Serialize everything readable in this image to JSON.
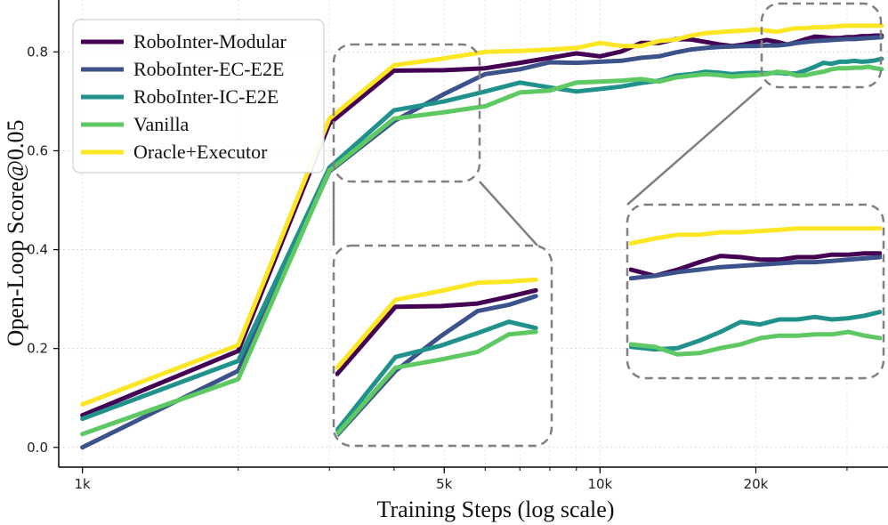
{
  "chart_data": {
    "type": "line",
    "title": "",
    "xlabel": "Training Steps (log scale)",
    "ylabel": "Open-Loop Score@0.05",
    "x_scale": "log",
    "xlim": [
      900,
      36000
    ],
    "ylim": [
      -0.04,
      0.905
    ],
    "x_ticks": [
      {
        "value": 1000,
        "label": "1k"
      },
      {
        "value": 5000,
        "label": "5k"
      },
      {
        "value": 10000,
        "label": "10k"
      },
      {
        "value": 20000,
        "label": "20k"
      }
    ],
    "y_ticks": [
      {
        "value": 0.0,
        "label": "0.0"
      },
      {
        "value": 0.2,
        "label": "0.2"
      },
      {
        "value": 0.4,
        "label": "0.4"
      },
      {
        "value": 0.6,
        "label": "0.6"
      },
      {
        "value": 0.8,
        "label": "0.8"
      }
    ],
    "grid": true,
    "legend_position": "top-left",
    "x": [
      1000,
      2000,
      3000,
      4000,
      5000,
      6000,
      7000,
      8000,
      9000,
      10000,
      11000,
      12000,
      13000,
      14000,
      15000,
      16000,
      17000,
      18000,
      19000,
      20000,
      21000,
      22000,
      23000,
      24000,
      25000,
      26000,
      27000,
      28000,
      29000,
      30000,
      31000,
      32000,
      33000,
      34000,
      35000
    ],
    "series": [
      {
        "name": "RoboInter-Modular",
        "color": "#440154",
        "values": [
          0.065,
          0.195,
          0.655,
          0.762,
          0.763,
          0.767,
          0.778,
          0.788,
          0.797,
          0.791,
          0.801,
          0.818,
          0.818,
          0.826,
          0.825,
          0.82,
          0.815,
          0.812,
          0.815,
          0.82,
          0.824,
          0.82,
          0.815,
          0.82,
          0.826,
          0.831,
          0.83,
          0.828,
          0.828,
          0.83,
          0.83,
          0.832,
          0.832,
          0.833,
          0.833
        ]
      },
      {
        "name": "RoboInter-EC-E2E",
        "color": "#3b528b",
        "values": [
          0.0,
          0.155,
          0.558,
          0.66,
          0.715,
          0.755,
          0.765,
          0.779,
          0.778,
          0.78,
          0.782,
          0.788,
          0.791,
          0.799,
          0.805,
          0.808,
          0.81,
          0.811,
          0.812,
          0.812,
          0.813,
          0.813,
          0.815,
          0.818,
          0.82,
          0.822,
          0.823,
          0.824,
          0.825,
          0.826,
          0.826,
          0.827,
          0.828,
          0.829,
          0.83
        ]
      },
      {
        "name": "RoboInter-IC-E2E",
        "color": "#21918c",
        "values": [
          0.058,
          0.175,
          0.566,
          0.682,
          0.7,
          0.72,
          0.738,
          0.728,
          0.72,
          0.725,
          0.73,
          0.737,
          0.742,
          0.752,
          0.755,
          0.76,
          0.758,
          0.755,
          0.757,
          0.758,
          0.757,
          0.758,
          0.756,
          0.757,
          0.763,
          0.77,
          0.778,
          0.776,
          0.78,
          0.78,
          0.782,
          0.78,
          0.781,
          0.783,
          0.786
        ]
      },
      {
        "name": "Vanilla",
        "color": "#5ec962",
        "values": [
          0.027,
          0.138,
          0.56,
          0.665,
          0.678,
          0.69,
          0.718,
          0.722,
          0.738,
          0.74,
          0.742,
          0.745,
          0.74,
          0.748,
          0.752,
          0.755,
          0.753,
          0.75,
          0.752,
          0.753,
          0.755,
          0.76,
          0.758,
          0.752,
          0.753,
          0.757,
          0.76,
          0.765,
          0.767,
          0.767,
          0.768,
          0.768,
          0.77,
          0.767,
          0.765
        ]
      },
      {
        "name": "Oracle+Executor",
        "color": "#fde725",
        "values": [
          0.087,
          0.207,
          0.665,
          0.773,
          0.787,
          0.8,
          0.802,
          0.805,
          0.808,
          0.818,
          0.812,
          0.812,
          0.822,
          0.825,
          0.833,
          0.838,
          0.84,
          0.842,
          0.843,
          0.845,
          0.843,
          0.841,
          0.845,
          0.848,
          0.848,
          0.85,
          0.85,
          0.851,
          0.852,
          0.853,
          0.853,
          0.853,
          0.853,
          0.853,
          0.853
        ]
      }
    ],
    "insets": [
      {
        "name": "zoom-early",
        "xlim": [
          3000,
          8500
        ],
        "ylim": [
          0.555,
          0.845
        ]
      },
      {
        "name": "zoom-late",
        "xlim": [
          22000,
          35000
        ],
        "ylim": [
          0.74,
          0.865
        ]
      }
    ]
  }
}
